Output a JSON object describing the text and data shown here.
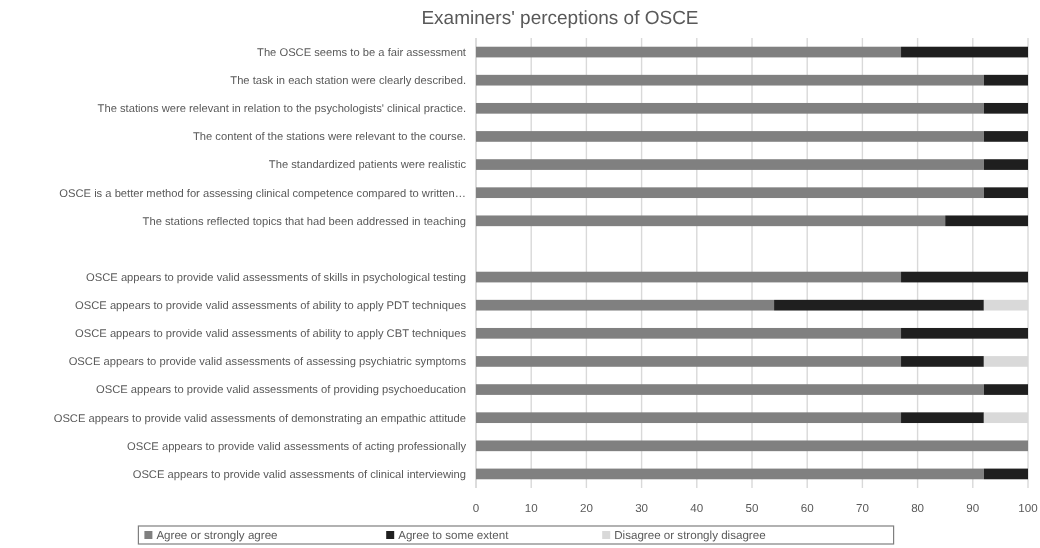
{
  "chart_data": {
    "type": "bar",
    "orientation": "horizontal",
    "stacked": true,
    "title": "Examiners' perceptions of OSCE",
    "categories": [
      "The OSCE seems to be a fair assessment",
      "The task in each station were clearly described.",
      "The stations were relevant in relation to the psychologists' clinical practice.",
      "The content of the stations were relevant to the course.",
      "The standardized patients were realistic",
      "OSCE is a better method for assessing clinical competence compared to written…",
      "The stations reflected topics that had been addressed in teaching",
      null,
      "OSCE appears to provide valid assessments of skills in psychological testing",
      "OSCE appears to provide valid assessments of ability to apply PDT techniques",
      "OSCE appears to provide valid assessments of ability to apply CBT techniques",
      "OSCE appears to provide valid assessments of assessing psychiatric symptoms",
      "OSCE appears to provide valid assessments of providing psychoeducation",
      "OSCE appears to provide valid assessments of demonstrating an empathic attitude",
      "OSCE appears to provide valid assessments of acting professionally",
      "OSCE appears to provide valid assessments of clinical interviewing"
    ],
    "series": [
      {
        "name": "Agree or strongly agree",
        "color": "#808080",
        "values": [
          77,
          92,
          92,
          92,
          92,
          92,
          85,
          null,
          77,
          54,
          77,
          77,
          92,
          77,
          100,
          92
        ]
      },
      {
        "name": "Agree to some extent",
        "color": "#1f1f1f",
        "values": [
          23,
          8,
          8,
          8,
          8,
          8,
          15,
          null,
          23,
          38,
          23,
          15,
          8,
          15,
          0,
          8
        ]
      },
      {
        "name": "Disagree or strongly disagree",
        "color": "#d9d9d9",
        "values": [
          0,
          0,
          0,
          0,
          0,
          0,
          0,
          null,
          0,
          8,
          0,
          8,
          0,
          8,
          0,
          0
        ]
      }
    ],
    "xlim": [
      0,
      100
    ],
    "xticks": [
      0,
      10,
      20,
      30,
      40,
      50,
      60,
      70,
      80,
      90,
      100
    ],
    "grid": "x",
    "legend": "bottom"
  }
}
